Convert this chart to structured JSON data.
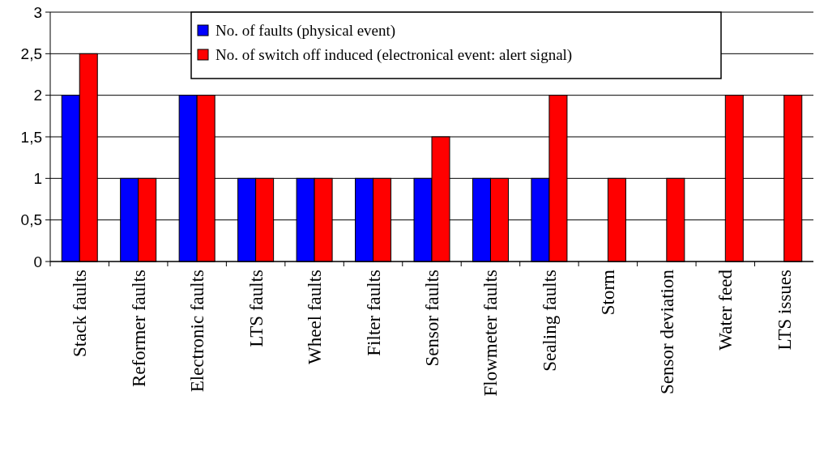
{
  "chart_data": {
    "type": "bar",
    "categories": [
      "Stack faults",
      "Reformer faults",
      "Electronic faults",
      "LTS faults",
      "Wheel faults",
      "Filter faults",
      "Sensor faults",
      "Flowmeter faults",
      "Sealing faults",
      "Storm",
      "Sensor deviation",
      "Water feed",
      "LTS issues"
    ],
    "series": [
      {
        "name": "No. of faults (physical event)",
        "color": "#0000ff",
        "values": [
          2,
          1,
          2,
          1,
          1,
          1,
          1,
          1,
          1,
          null,
          null,
          null,
          null
        ]
      },
      {
        "name": "No. of switch off induced (electronical event: alert signal)",
        "color": "#ff0000",
        "values": [
          2.5,
          1,
          2,
          1,
          1,
          1,
          1.5,
          1,
          2,
          1,
          1,
          2,
          2
        ]
      }
    ],
    "ylim": [
      0,
      3
    ],
    "yticks": [
      0,
      {
        "value": 0.5,
        "label": "0,5"
      },
      1,
      {
        "value": 1.5,
        "label": "1,5"
      },
      2,
      {
        "value": 2.5,
        "label": "2,5"
      },
      3
    ],
    "grid": "y",
    "legend": "top"
  }
}
